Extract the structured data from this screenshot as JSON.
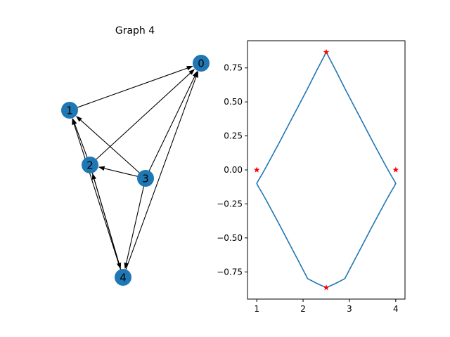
{
  "graph": {
    "title": "Graph 4",
    "node_color": "#1f77b4",
    "edge_color": "#000000",
    "nodes": [
      {
        "id": "0",
        "label": "0"
      },
      {
        "id": "1",
        "label": "1"
      },
      {
        "id": "2",
        "label": "2"
      },
      {
        "id": "3",
        "label": "3"
      },
      {
        "id": "4",
        "label": "4"
      }
    ],
    "edges": [
      {
        "from": "1",
        "to": "0"
      },
      {
        "from": "2",
        "to": "0"
      },
      {
        "from": "3",
        "to": "0"
      },
      {
        "from": "4",
        "to": "0"
      },
      {
        "from": "2",
        "to": "1"
      },
      {
        "from": "3",
        "to": "1"
      },
      {
        "from": "4",
        "to": "1"
      },
      {
        "from": "3",
        "to": "2"
      },
      {
        "from": "4",
        "to": "2"
      },
      {
        "from": "2",
        "to": "4"
      },
      {
        "from": "3",
        "to": "4"
      }
    ]
  },
  "chart_data": {
    "type": "line",
    "title": "",
    "xlabel": "",
    "ylabel": "",
    "xlim": [
      0.8,
      4.2
    ],
    "ylim": [
      -0.95,
      0.95
    ],
    "x_ticks": [
      1,
      2,
      3,
      4
    ],
    "x_tick_labels": [
      "1",
      "2",
      "3",
      "4"
    ],
    "y_ticks": [
      -0.75,
      -0.5,
      -0.25,
      0.0,
      0.25,
      0.5,
      0.75
    ],
    "y_tick_labels": [
      "−0.75",
      "−0.50",
      "−0.25",
      "0.00",
      "0.25",
      "0.50",
      "0.75"
    ],
    "grid": false,
    "series": [
      {
        "color": "#1f77b4",
        "x": [
          2.5,
          2.3,
          2.1,
          1.9,
          1.7,
          1.5,
          1.35,
          1.2,
          1.1,
          1.03,
          1.0,
          1.03,
          1.1,
          1.2,
          1.35,
          1.5,
          1.7,
          1.9,
          2.1,
          2.3,
          2.5,
          2.7,
          2.9,
          3.1,
          3.3,
          3.5,
          3.65,
          3.8,
          3.9,
          3.97,
          4.0,
          3.97,
          3.9,
          3.8,
          3.65,
          3.5,
          3.3,
          3.1,
          2.9,
          2.7,
          2.5
        ],
        "y": [
          0.866,
          0.735,
          0.6,
          0.47,
          0.34,
          0.21,
          0.115,
          0.02,
          -0.04,
          -0.08,
          -0.1,
          -0.12,
          -0.16,
          -0.22,
          -0.315,
          -0.41,
          -0.54,
          -0.67,
          -0.8,
          -0.835,
          -0.866,
          -0.835,
          -0.8,
          -0.67,
          -0.54,
          -0.41,
          -0.315,
          -0.22,
          -0.16,
          -0.12,
          -0.1,
          -0.08,
          -0.04,
          0.02,
          0.115,
          0.21,
          0.34,
          0.47,
          0.6,
          0.735,
          0.866
        ]
      }
    ],
    "markers": {
      "color": "#ff0000",
      "shape": "star",
      "x": [
        2.5,
        1.0,
        4.0,
        2.5
      ],
      "y": [
        0.866,
        0.0,
        0.0,
        -0.866
      ]
    }
  }
}
